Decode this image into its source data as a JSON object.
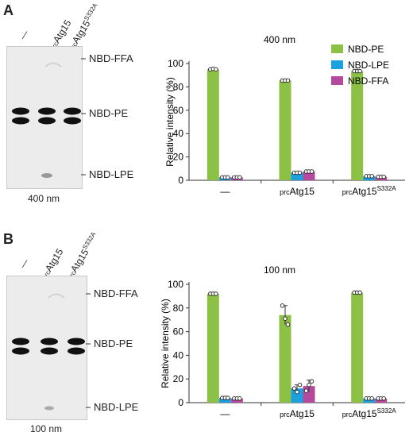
{
  "panels": [
    {
      "letter": "A",
      "tlc": {
        "lane_labels": [
          {
            "text": "—"
          },
          {
            "prefix": "prc",
            "main": "Atg15",
            "sup": ""
          },
          {
            "prefix": "prc",
            "main": "Atg15",
            "sup": "S332A"
          }
        ],
        "band_labels": [
          "NBD-FFA",
          "NBD-PE",
          "NBD-LPE"
        ],
        "nm_label": "400 nm"
      },
      "chart_title": "400 nm"
    },
    {
      "letter": "B",
      "tlc": {
        "lane_labels": [
          {
            "text": "—"
          },
          {
            "prefix": "prc",
            "main": "Atg15",
            "sup": ""
          },
          {
            "prefix": "prc",
            "main": "Atg15",
            "sup": "S332A"
          }
        ],
        "band_labels": [
          "NBD-FFA",
          "NBD-PE",
          "NBD-LPE"
        ],
        "nm_label": "100 nm"
      },
      "chart_title": "100 nm"
    }
  ],
  "colors": {
    "pe": "#8dc146",
    "lpe": "#1ba0e0",
    "ffa": "#b5499b"
  },
  "chart_data": [
    {
      "type": "bar",
      "title": "400 nm",
      "ylabel": "Relative intensity  (%)",
      "ylim": [
        0,
        100
      ],
      "yticks": [
        0,
        20,
        40,
        60,
        80,
        100
      ],
      "categories": [
        {
          "prefix": "",
          "main": "—",
          "sup": ""
        },
        {
          "prefix": "prc",
          "main": "Atg15",
          "sup": ""
        },
        {
          "prefix": "prc",
          "main": "Atg15",
          "sup": "S332A"
        }
      ],
      "legend_position": "top-right",
      "series": [
        {
          "name": "NBD-PE",
          "values": [
            95,
            85.5,
            93.5
          ],
          "points": [
            [
              95,
              95.5,
              95
            ],
            [
              85.5,
              85.5,
              85.5
            ],
            [
              93.5,
              93.5,
              93.5
            ]
          ]
        },
        {
          "name": "NBD-LPE",
          "values": [
            2.5,
            6.5,
            3.5
          ],
          "points": [
            [
              2.5,
              2.5,
              2.5
            ],
            [
              6.5,
              6.5,
              6.5
            ],
            [
              3.5,
              3.5,
              3.5
            ]
          ]
        },
        {
          "name": "NBD-FFA",
          "values": [
            2.5,
            7.5,
            3
          ],
          "points": [
            [
              2.5,
              2.5,
              2.5
            ],
            [
              7.5,
              7.5,
              7.5
            ],
            [
              3,
              3,
              3
            ]
          ]
        }
      ]
    },
    {
      "type": "bar",
      "title": "100 nm",
      "ylabel": "Relative intensity (%)",
      "ylim": [
        0,
        100
      ],
      "yticks": [
        0,
        20,
        40,
        60,
        80,
        100
      ],
      "categories": [
        {
          "prefix": "",
          "main": "—",
          "sup": ""
        },
        {
          "prefix": "prc",
          "main": "Atg15",
          "sup": ""
        },
        {
          "prefix": "prc",
          "main": "Atg15",
          "sup": "S332A"
        }
      ],
      "series": [
        {
          "name": "NBD-PE",
          "values": [
            92,
            74,
            93
          ],
          "errors": [
            0,
            8,
            0
          ],
          "points": [
            [
              92,
              92,
              92
            ],
            [
              82,
              71,
              66
            ],
            [
              93,
              93,
              93
            ]
          ]
        },
        {
          "name": "NBD-LPE",
          "values": [
            4,
            12,
            3.5
          ],
          "errors": [
            0,
            3,
            0
          ],
          "points": [
            [
              4,
              4,
              4
            ],
            [
              12,
              9,
              15
            ],
            [
              3.5,
              3.5,
              3.5
            ]
          ]
        },
        {
          "name": "NBD-FFA",
          "values": [
            3.5,
            14,
            3.5
          ],
          "errors": [
            0,
            5,
            0
          ],
          "points": [
            [
              3.5,
              3.5,
              3.5
            ],
            [
              10,
              15,
              18
            ],
            [
              3.5,
              3.5,
              3.5
            ]
          ]
        }
      ]
    }
  ]
}
